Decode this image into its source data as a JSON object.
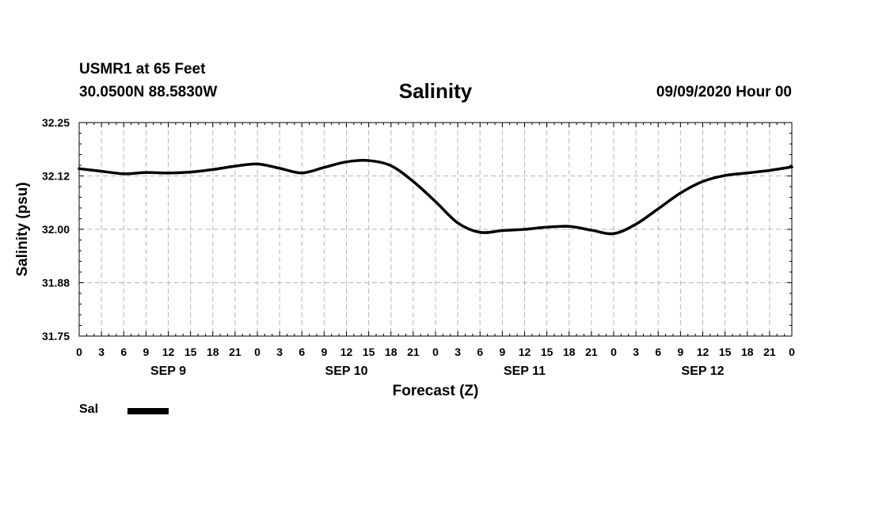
{
  "header": {
    "station": "USMR1 at 65 Feet",
    "coords": "30.0500N 88.5830W",
    "run_time": "09/09/2020 Hour 00"
  },
  "legend": {
    "label": "Sal"
  },
  "chart_data": {
    "type": "line",
    "title": "Salinity",
    "xlabel": "Forecast (Z)",
    "ylabel": "Salinity (psu)",
    "xlim": [
      0,
      96
    ],
    "ylim": [
      31.75,
      32.25
    ],
    "grid": true,
    "y_ticks": [
      "31.75",
      "31.88",
      "32.00",
      "32.12",
      "32.25"
    ],
    "y_tick_values": [
      31.75,
      31.875,
      32.0,
      32.125,
      32.25
    ],
    "x_tick_labels": [
      "0",
      "3",
      "6",
      "9",
      "12",
      "15",
      "18",
      "21",
      "0",
      "3",
      "6",
      "9",
      "12",
      "15",
      "18",
      "21",
      "0",
      "3",
      "6",
      "9",
      "12",
      "15",
      "18",
      "21",
      "0",
      "3",
      "6",
      "9",
      "12",
      "15",
      "18",
      "21",
      "0"
    ],
    "day_labels": [
      {
        "label": "SEP 9",
        "hour": 12
      },
      {
        "label": "SEP 10",
        "hour": 36
      },
      {
        "label": "SEP 11",
        "hour": 60
      },
      {
        "label": "SEP 12",
        "hour": 84
      }
    ],
    "series": [
      {
        "name": "Sal",
        "color": "#000000",
        "x": [
          0,
          3,
          6,
          9,
          12,
          15,
          18,
          21,
          24,
          27,
          30,
          33,
          36,
          39,
          42,
          45,
          48,
          51,
          54,
          57,
          60,
          63,
          66,
          69,
          72,
          75,
          78,
          81,
          84,
          87,
          90,
          93,
          96
        ],
        "values": [
          32.142,
          32.136,
          32.13,
          32.133,
          32.132,
          32.134,
          32.14,
          32.148,
          32.153,
          32.143,
          32.132,
          32.145,
          32.158,
          32.161,
          32.149,
          32.112,
          32.065,
          32.015,
          31.993,
          31.997,
          32.0,
          32.005,
          32.007,
          31.998,
          31.99,
          32.012,
          32.048,
          32.085,
          32.112,
          32.126,
          32.132,
          32.138,
          32.146
        ]
      }
    ]
  }
}
